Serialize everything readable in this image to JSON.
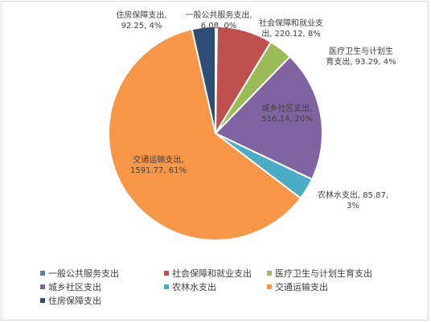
{
  "chart_data": {
    "type": "pie",
    "title": "",
    "categories": [
      "一般公共服务支出",
      "社会保障和就业支出",
      "医疗卫生与计划生育支出",
      "城乡社区支出",
      "农林水支出",
      "交通运输支出",
      "住房保障支出"
    ],
    "values": [
      6.08,
      220.12,
      93.29,
      516.14,
      85.87,
      1591.77,
      92.25
    ],
    "percent_labels": [
      "0%",
      "8%",
      "4%",
      "20%",
      "3%",
      "61%",
      "4%"
    ],
    "data_labels": [
      [
        "一般公共服务支出,",
        "6.08, 0%"
      ],
      [
        "社会保障和就业支",
        "出, 220.12, 8%"
      ],
      [
        "医疗卫生与计划生",
        "育支出, 93.29, 4%"
      ],
      [
        "城乡社区支出,",
        "516.14, 20%"
      ],
      [
        "农林水支出, 85.87,",
        "3%"
      ],
      [
        "交通运输支出,",
        "1591.77, 61%"
      ],
      [
        "住房保障支出,",
        "92.25, 4%"
      ]
    ],
    "colors": [
      "#4f81bd",
      "#c0504d",
      "#9bbb59",
      "#8064a2",
      "#4bacc6",
      "#f79646",
      "#2c4d75"
    ],
    "legend_position": "bottom"
  }
}
